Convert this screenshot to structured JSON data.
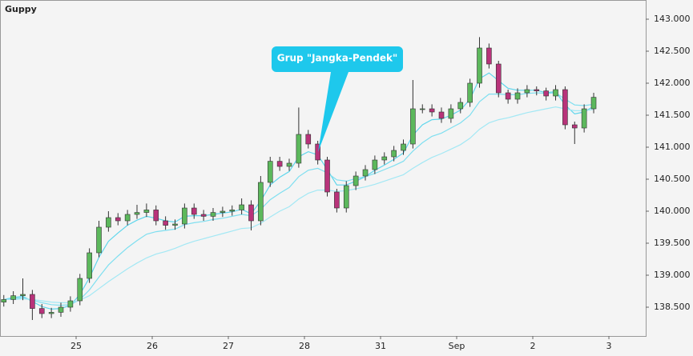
{
  "chart_data": {
    "type": "candlestick",
    "title": "Guppy",
    "annotation": "Grup \"Jangka-Pendek\"",
    "up_color": "#5cb85c",
    "down_color": "#b8337a",
    "xlim": [
      -1,
      7.484
    ],
    "ylim": [
      138.05,
      143.3
    ],
    "xticks": [
      {
        "value": 0,
        "label": "25"
      },
      {
        "value": 1,
        "label": "26"
      },
      {
        "value": 2,
        "label": "27"
      },
      {
        "value": 3,
        "label": "28"
      },
      {
        "value": 4,
        "label": "31"
      },
      {
        "value": 5,
        "label": "Sep"
      },
      {
        "value": 6,
        "label": "2"
      },
      {
        "value": 7,
        "label": "3"
      }
    ],
    "yticks": [
      {
        "value": 138.5,
        "label": "138.500"
      },
      {
        "value": 139,
        "label": "139.000"
      },
      {
        "value": 139.5,
        "label": "139.500"
      },
      {
        "value": 140,
        "label": "140.000"
      },
      {
        "value": 140.5,
        "label": "140.500"
      },
      {
        "value": 141,
        "label": "141.000"
      },
      {
        "value": 141.5,
        "label": "141.500"
      },
      {
        "value": 142,
        "label": "142.000"
      },
      {
        "value": 142.5,
        "label": "142.500"
      },
      {
        "value": 143,
        "label": "143.000"
      }
    ],
    "x": [
      -0.95,
      -0.825,
      -0.7,
      -0.575,
      -0.45,
      -0.325,
      -0.2,
      -0.075,
      0.05,
      0.175,
      0.3,
      0.425,
      0.55,
      0.675,
      0.8,
      0.925,
      1.05,
      1.175,
      1.3,
      1.425,
      1.55,
      1.675,
      1.8,
      1.925,
      2.05,
      2.175,
      2.3,
      2.425,
      2.55,
      2.675,
      2.8,
      2.925,
      3.05,
      3.175,
      3.3,
      3.425,
      3.55,
      3.675,
      3.8,
      3.925,
      4.05,
      4.175,
      4.3,
      4.425,
      4.55,
      4.675,
      4.8,
      4.925,
      5.05,
      5.175,
      5.3,
      5.425,
      5.55,
      5.675,
      5.8,
      5.925,
      6.05,
      6.175,
      6.3,
      6.425,
      6.55,
      6.675,
      6.8
    ],
    "open": [
      138.58,
      138.62,
      138.68,
      138.7,
      138.48,
      138.4,
      138.42,
      138.5,
      138.6,
      138.95,
      139.35,
      139.75,
      139.9,
      139.85,
      139.95,
      139.98,
      140.02,
      139.85,
      139.78,
      139.8,
      140.05,
      139.95,
      139.92,
      139.98,
      140.0,
      140.02,
      140.1,
      139.85,
      140.45,
      140.78,
      140.7,
      140.75,
      141.2,
      141.05,
      140.8,
      140.3,
      140.05,
      140.4,
      140.55,
      140.65,
      140.8,
      140.85,
      140.95,
      141.05,
      141.6,
      141.6,
      141.55,
      141.45,
      141.6,
      141.7,
      142.0,
      142.55,
      142.3,
      141.85,
      141.75,
      141.85,
      141.9,
      141.88,
      141.8,
      141.9,
      141.35,
      141.3,
      141.6
    ],
    "high": [
      138.69,
      138.75,
      138.95,
      138.77,
      138.55,
      138.49,
      138.57,
      138.67,
      139.02,
      139.42,
      139.85,
      140.0,
      139.97,
      140.02,
      140.1,
      140.12,
      140.09,
      139.92,
      139.87,
      140.12,
      140.12,
      140.02,
      140.05,
      140.07,
      140.09,
      140.2,
      140.17,
      140.55,
      140.85,
      140.85,
      140.82,
      141.62,
      141.27,
      141.1,
      140.85,
      140.35,
      140.47,
      140.62,
      140.72,
      140.87,
      140.92,
      141.02,
      141.12,
      142.05,
      141.67,
      141.67,
      141.62,
      141.67,
      141.77,
      142.07,
      142.72,
      142.62,
      142.35,
      141.9,
      141.92,
      141.97,
      141.95,
      141.93,
      141.97,
      141.95,
      141.4,
      141.67,
      141.85
    ],
    "low": [
      138.51,
      138.55,
      138.61,
      138.3,
      138.33,
      138.33,
      138.35,
      138.43,
      138.53,
      138.88,
      139.28,
      139.68,
      139.78,
      139.78,
      139.88,
      139.91,
      139.78,
      139.71,
      139.71,
      139.73,
      139.88,
      139.85,
      139.85,
      139.91,
      139.93,
      139.95,
      139.7,
      139.78,
      140.38,
      140.63,
      140.63,
      140.68,
      140.98,
      140.73,
      140.23,
      139.98,
      139.98,
      140.33,
      140.48,
      140.58,
      140.73,
      140.78,
      140.88,
      140.98,
      141.53,
      141.48,
      141.38,
      141.38,
      141.53,
      141.63,
      141.93,
      142.23,
      141.78,
      141.68,
      141.68,
      141.78,
      141.81,
      141.73,
      141.73,
      141.28,
      141.05,
      141.23,
      141.53
    ],
    "close": [
      138.62,
      138.68,
      138.7,
      138.48,
      138.4,
      138.42,
      138.5,
      138.6,
      138.95,
      139.35,
      139.75,
      139.9,
      139.85,
      139.95,
      139.98,
      140.02,
      139.85,
      139.78,
      139.8,
      140.05,
      139.95,
      139.92,
      139.98,
      140.0,
      140.02,
      140.1,
      139.85,
      140.45,
      140.78,
      140.7,
      140.75,
      141.2,
      141.05,
      140.8,
      140.3,
      140.05,
      140.4,
      140.55,
      140.65,
      140.8,
      140.85,
      140.95,
      141.05,
      141.6,
      141.6,
      141.55,
      141.45,
      141.6,
      141.7,
      142.0,
      142.55,
      142.3,
      141.85,
      141.75,
      141.85,
      141.9,
      141.88,
      141.8,
      141.9,
      141.35,
      141.3,
      141.6,
      141.78
    ],
    "series": [
      {
        "color": "#5fd6ec",
        "values": [
          138.62,
          138.65,
          138.67,
          138.59,
          138.51,
          138.47,
          138.48,
          138.53,
          138.7,
          138.96,
          139.28,
          139.53,
          139.66,
          139.78,
          139.86,
          139.92,
          139.89,
          139.85,
          139.83,
          139.92,
          139.93,
          139.93,
          139.95,
          139.97,
          139.99,
          140.03,
          139.96,
          140.16,
          140.41,
          140.53,
          140.62,
          140.85,
          140.93,
          140.88,
          140.65,
          140.41,
          140.41,
          140.47,
          140.54,
          140.64,
          140.72,
          140.81,
          140.91,
          141.19,
          141.35,
          141.43,
          141.44,
          141.5,
          141.58,
          141.75,
          142.07,
          142.16,
          142.04,
          141.92,
          141.89,
          141.89,
          141.89,
          141.85,
          141.87,
          141.66,
          141.52,
          141.55,
          141.64
        ]
      },
      {
        "color": "#7fdff0",
        "values": [
          138.62,
          138.63,
          138.65,
          138.61,
          138.57,
          138.54,
          138.53,
          138.54,
          138.62,
          138.77,
          138.97,
          139.16,
          139.3,
          139.43,
          139.54,
          139.64,
          139.68,
          139.7,
          139.72,
          139.79,
          139.82,
          139.84,
          139.87,
          139.89,
          139.92,
          139.95,
          139.93,
          140.03,
          140.18,
          140.28,
          140.37,
          140.54,
          140.64,
          140.67,
          140.6,
          140.49,
          140.47,
          140.51,
          140.54,
          140.59,
          140.65,
          140.71,
          140.78,
          140.94,
          141.07,
          141.17,
          141.22,
          141.3,
          141.38,
          141.5,
          141.71,
          141.83,
          141.83,
          141.82,
          141.82,
          141.84,
          141.85,
          141.84,
          141.85,
          141.75,
          141.66,
          141.65,
          141.67
        ]
      },
      {
        "color": "#a3e8f4",
        "values": [
          138.62,
          138.62,
          138.63,
          138.62,
          138.6,
          138.58,
          138.57,
          138.57,
          138.61,
          138.68,
          138.79,
          138.9,
          139.0,
          139.1,
          139.19,
          139.27,
          139.33,
          139.37,
          139.42,
          139.48,
          139.53,
          139.57,
          139.61,
          139.65,
          139.69,
          139.73,
          139.74,
          139.81,
          139.91,
          140.0,
          140.07,
          140.19,
          140.28,
          140.33,
          140.33,
          140.31,
          140.32,
          140.35,
          140.38,
          140.42,
          140.47,
          140.52,
          140.57,
          140.67,
          140.76,
          140.84,
          140.9,
          140.97,
          141.04,
          141.14,
          141.28,
          141.38,
          141.43,
          141.46,
          141.5,
          141.54,
          141.57,
          141.6,
          141.63,
          141.6,
          141.57,
          141.57,
          141.59
        ]
      }
    ]
  }
}
